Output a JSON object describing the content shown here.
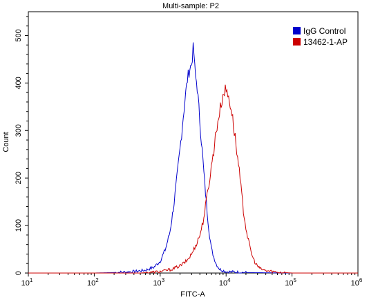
{
  "chart_data": {
    "type": "line",
    "title": "Multi-sample: P2",
    "xlabel": "FITC-A",
    "ylabel": "Count",
    "x_scale": "log",
    "xlim": [
      10,
      1000000
    ],
    "ylim": [
      0,
      550
    ],
    "x_ticks": [
      {
        "value": 10,
        "base": "10",
        "exp": "1"
      },
      {
        "value": 100,
        "base": "10",
        "exp": "2"
      },
      {
        "value": 1000,
        "base": "10",
        "exp": "3"
      },
      {
        "value": 10000,
        "base": "10",
        "exp": "4"
      },
      {
        "value": 100000,
        "base": "10",
        "exp": "5"
      },
      {
        "value": 1000000,
        "base": "10",
        "exp": "6"
      }
    ],
    "y_ticks": [
      {
        "value": 0,
        "label": "0"
      },
      {
        "value": 100,
        "label": "100"
      },
      {
        "value": 200,
        "label": "200"
      },
      {
        "value": 300,
        "label": "300"
      },
      {
        "value": 400,
        "label": "400"
      },
      {
        "value": 500,
        "label": "500"
      }
    ],
    "grid": false,
    "legend_position": "top-right",
    "series": [
      {
        "name": "IgG Control",
        "color": "#0000cc",
        "points": [
          [
            10,
            0
          ],
          [
            100,
            0
          ],
          [
            200,
            1
          ],
          [
            400,
            3
          ],
          [
            600,
            6
          ],
          [
            800,
            12
          ],
          [
            1000,
            25
          ],
          [
            1200,
            50
          ],
          [
            1400,
            85
          ],
          [
            1600,
            140
          ],
          [
            1800,
            200
          ],
          [
            2000,
            260
          ],
          [
            2200,
            320
          ],
          [
            2400,
            370
          ],
          [
            2600,
            410
          ],
          [
            2800,
            430
          ],
          [
            3000,
            440
          ],
          [
            3200,
            480
          ],
          [
            3400,
            415
          ],
          [
            3600,
            400
          ],
          [
            3800,
            360
          ],
          [
            4000,
            320
          ],
          [
            4300,
            265
          ],
          [
            4600,
            210
          ],
          [
            5000,
            150
          ],
          [
            5500,
            90
          ],
          [
            6000,
            50
          ],
          [
            7000,
            20
          ],
          [
            8000,
            8
          ],
          [
            10000,
            3
          ],
          [
            20000,
            1
          ],
          [
            100000,
            0
          ],
          [
            1000000,
            0
          ]
        ]
      },
      {
        "name": "13462-1-AP",
        "color": "#cc0000",
        "points": [
          [
            10,
            0
          ],
          [
            500,
            0
          ],
          [
            1000,
            3
          ],
          [
            1500,
            8
          ],
          [
            2000,
            15
          ],
          [
            2500,
            25
          ],
          [
            3000,
            40
          ],
          [
            3500,
            60
          ],
          [
            4000,
            80
          ],
          [
            4500,
            110
          ],
          [
            5000,
            150
          ],
          [
            5500,
            190
          ],
          [
            6000,
            225
          ],
          [
            6500,
            260
          ],
          [
            7000,
            295
          ],
          [
            7500,
            320
          ],
          [
            8000,
            340
          ],
          [
            8500,
            360
          ],
          [
            9000,
            375
          ],
          [
            9500,
            385
          ],
          [
            10000,
            385
          ],
          [
            11000,
            370
          ],
          [
            12000,
            345
          ],
          [
            13000,
            310
          ],
          [
            14000,
            275
          ],
          [
            15000,
            240
          ],
          [
            16500,
            190
          ],
          [
            18000,
            140
          ],
          [
            20000,
            95
          ],
          [
            22000,
            65
          ],
          [
            25000,
            35
          ],
          [
            28000,
            20
          ],
          [
            32000,
            10
          ],
          [
            40000,
            5
          ],
          [
            60000,
            2
          ],
          [
            100000,
            0
          ],
          [
            1000000,
            0
          ]
        ]
      }
    ]
  }
}
